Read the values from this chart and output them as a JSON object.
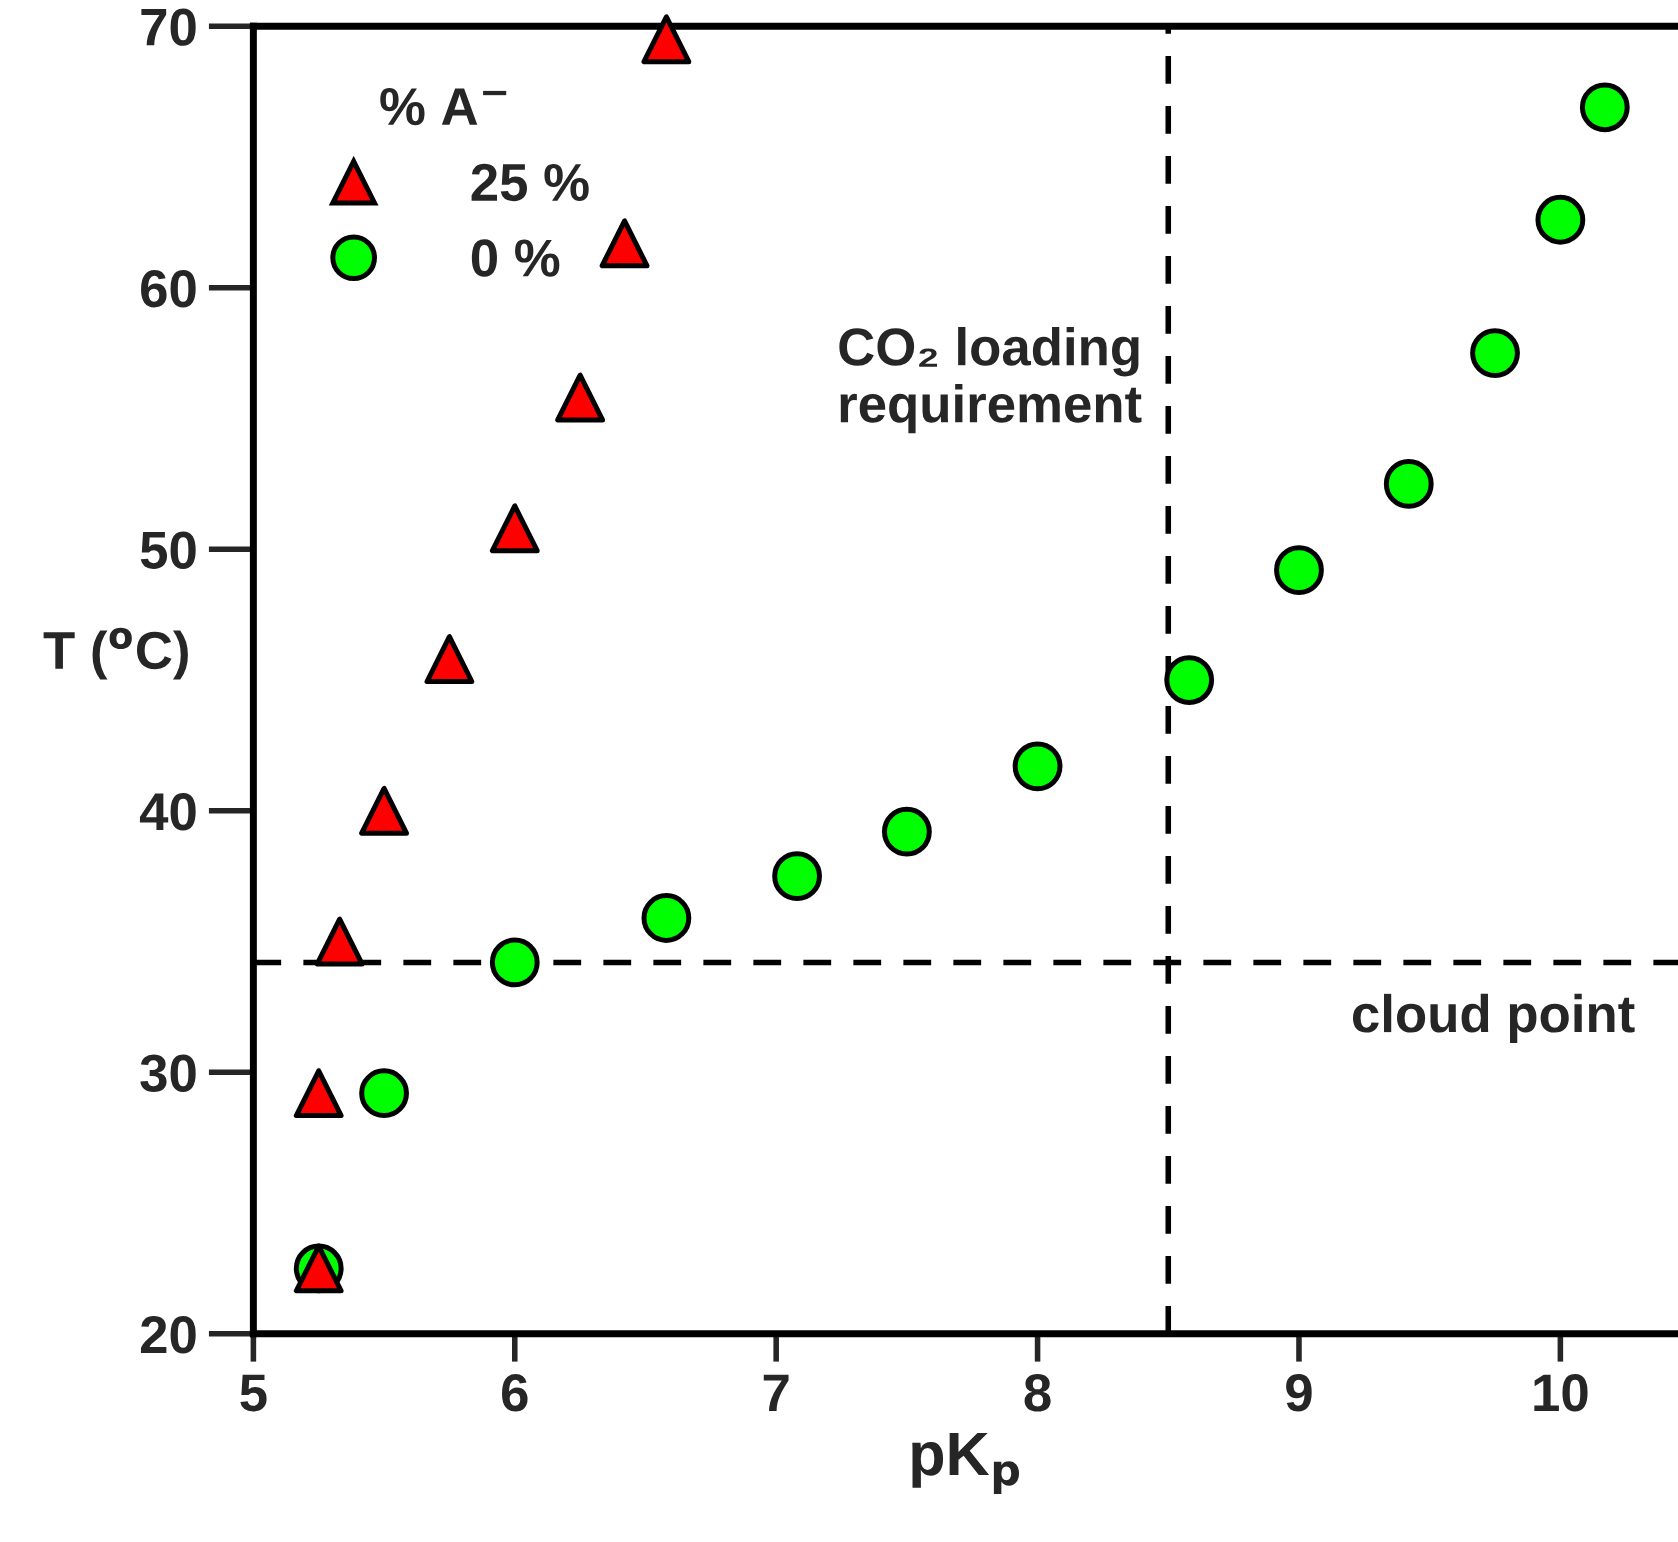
{
  "chart_data": {
    "type": "scatter",
    "xlabel": "pK$_{p}$",
    "ylabel": "T ($^{o}$C)",
    "legend_title": "% A$^{−}$",
    "legend": "top left",
    "xlim": [
      5,
      10.45
    ],
    "xticks": [
      5,
      6,
      7,
      8,
      9,
      10
    ],
    "ylim": [
      20,
      70
    ],
    "yticks": [
      20,
      30,
      40,
      50,
      60,
      70
    ],
    "grid": false,
    "series": [
      {
        "name": "25 %",
        "color": "#ff0000",
        "marker": "triangle",
        "x": [
          5.25,
          5.25,
          5.33,
          5.5,
          5.75,
          6.0,
          6.25,
          6.42,
          6.58
        ],
        "values": [
          22.5,
          29.2,
          35,
          40,
          45.8,
          50.8,
          55.8,
          61.7,
          69.5
        ]
      },
      {
        "name": "0 %",
        "color": "#00ff00",
        "marker": "circle",
        "x": [
          5.25,
          5.5,
          6.0,
          6.58,
          7.08,
          7.5,
          8.0,
          8.58,
          9.0,
          9.42,
          9.75,
          10.0,
          10.17
        ],
        "values": [
          22.5,
          29.2,
          34.2,
          35.9,
          37.5,
          39.2,
          41.7,
          45,
          49.2,
          52.5,
          57.5,
          62.6,
          66.9
        ]
      }
    ],
    "ref_lines": [
      {
        "axis": "x",
        "value": 8.5,
        "label": "CO₂ loading\nrequirement",
        "color": "#000000",
        "line_style": "dashed"
      },
      {
        "axis": "y",
        "value": 34.2,
        "label": "cloud point",
        "color": "#000000",
        "line_style": "dashed"
      }
    ]
  }
}
